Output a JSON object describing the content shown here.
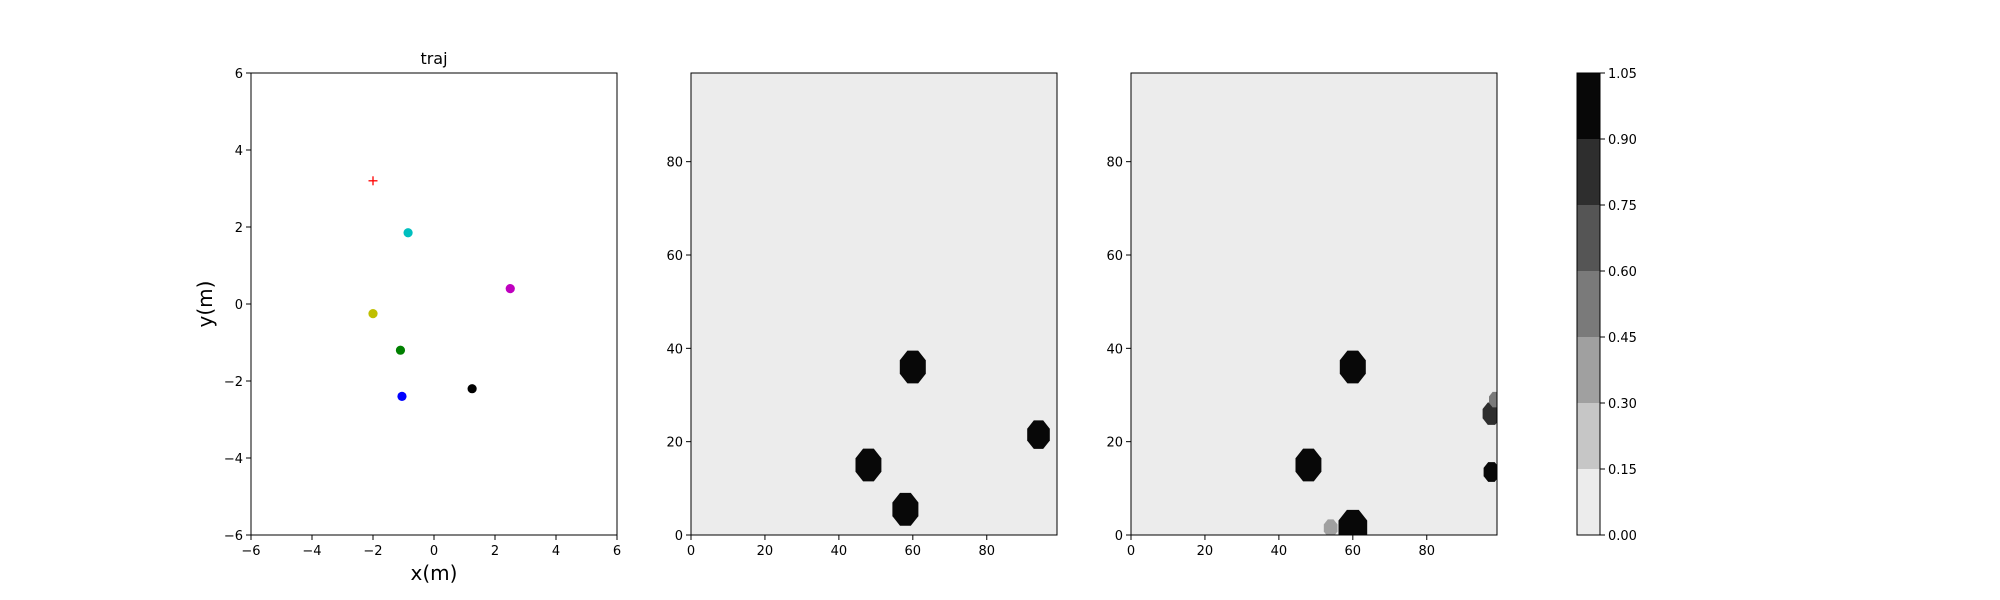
{
  "chart_data": [
    {
      "type": "scatter",
      "title": "traj",
      "xlabel": "x(m)",
      "ylabel": "y(m)",
      "xlim": [
        -6,
        6
      ],
      "ylim": [
        -6,
        6
      ],
      "xticks": [
        "−6",
        "−4",
        "−2",
        "0",
        "2",
        "4",
        "6"
      ],
      "yticks": [
        "−6",
        "−4",
        "−2",
        "0",
        "2",
        "4",
        "6"
      ],
      "grid": false,
      "points": [
        {
          "x": -2.0,
          "y": 3.2,
          "marker": "plus",
          "color": "#ff0000"
        },
        {
          "x": -0.85,
          "y": 1.85,
          "marker": "circle",
          "color": "#00bfbf"
        },
        {
          "x": 2.5,
          "y": 0.4,
          "marker": "circle",
          "color": "#bf00bf"
        },
        {
          "x": -2.0,
          "y": -0.25,
          "marker": "circle",
          "color": "#bfbf00"
        },
        {
          "x": -1.1,
          "y": -1.2,
          "marker": "circle",
          "color": "#008000"
        },
        {
          "x": 1.25,
          "y": -2.2,
          "marker": "circle",
          "color": "#000000"
        },
        {
          "x": -1.05,
          "y": -2.4,
          "marker": "circle",
          "color": "#0000ff"
        }
      ]
    },
    {
      "type": "heatmap",
      "xlim": [
        0,
        99
      ],
      "ylim": [
        0,
        99
      ],
      "xticks": [
        "0",
        "20",
        "40",
        "60",
        "80"
      ],
      "yticks": [
        "0",
        "20",
        "40",
        "60",
        "80"
      ],
      "background_value": 0.0,
      "blobs": [
        {
          "cx": 60,
          "cy": 36,
          "r": 3.8,
          "value": 1.0
        },
        {
          "cx": 48,
          "cy": 15,
          "r": 3.8,
          "value": 1.0
        },
        {
          "cx": 58,
          "cy": 5.5,
          "r": 3.8,
          "value": 1.0
        },
        {
          "cx": 94,
          "cy": 21.5,
          "r": 3.3,
          "value": 1.0
        }
      ]
    },
    {
      "type": "heatmap",
      "xlim": [
        0,
        99
      ],
      "ylim": [
        0,
        99
      ],
      "xticks": [
        "0",
        "20",
        "40",
        "60",
        "80"
      ],
      "yticks": [
        "0",
        "20",
        "40",
        "60",
        "80"
      ],
      "background_value": 0.0,
      "blobs": [
        {
          "cx": 60,
          "cy": 36,
          "r": 3.8,
          "value": 1.0
        },
        {
          "cx": 48,
          "cy": 15,
          "r": 3.8,
          "value": 1.0
        },
        {
          "cx": 60,
          "cy": 1.5,
          "r": 4.2,
          "value": 1.0
        },
        {
          "cx": 54,
          "cy": 1.5,
          "r": 2.0,
          "value": 0.3
        },
        {
          "cx": 97.5,
          "cy": 26,
          "r": 2.6,
          "value": 0.75
        },
        {
          "cx": 98.5,
          "cy": 29,
          "r": 1.8,
          "value": 0.45
        },
        {
          "cx": 97.5,
          "cy": 13.5,
          "r": 2.3,
          "value": 0.9
        }
      ]
    },
    {
      "type": "colorbar",
      "levels": [
        0.0,
        0.15,
        0.3,
        0.45,
        0.6,
        0.75,
        0.9,
        1.05
      ],
      "tick_labels": [
        "0.00",
        "0.15",
        "0.30",
        "0.45",
        "0.60",
        "0.75",
        "0.90",
        "1.05"
      ],
      "colors": [
        "#ececec",
        "#c6c6c6",
        "#a0a0a0",
        "#7a7a7a",
        "#555555",
        "#2e2e2e",
        "#080808"
      ]
    }
  ]
}
